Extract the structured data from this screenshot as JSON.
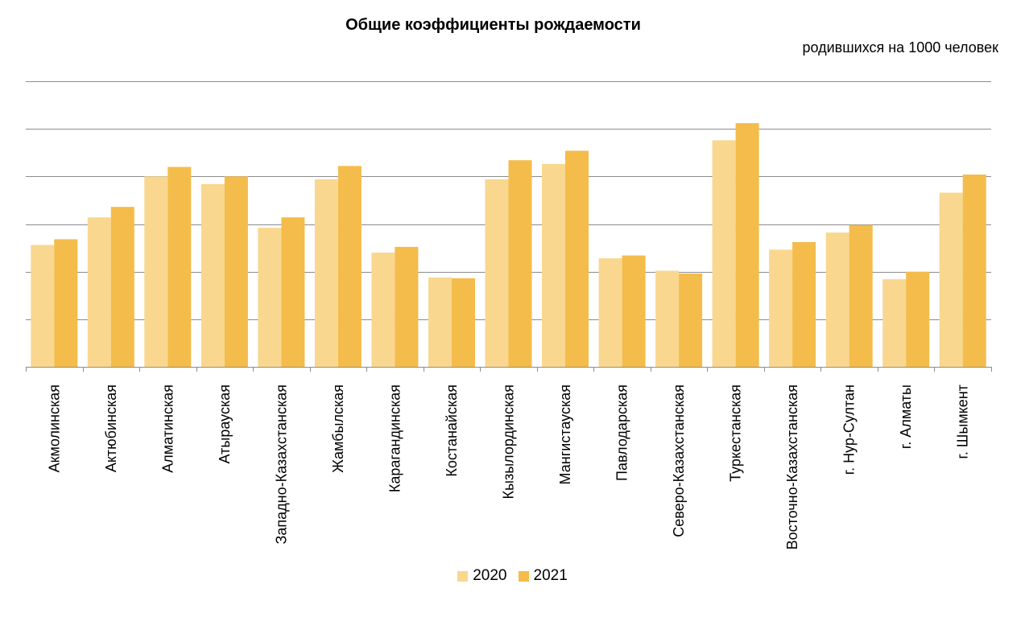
{
  "chart_data": {
    "type": "bar",
    "title": "Общие коэффициенты рождаемости",
    "subtitle": "родившихся на 1000 человек",
    "xlabel": "",
    "ylabel": "",
    "ylim": [
      0,
      30
    ],
    "gridlines": [
      0,
      5,
      10,
      15,
      20,
      25,
      30
    ],
    "grid": true,
    "legend_position": "bottom",
    "categories": [
      "Акмолинская",
      "Актюбинская",
      "Алматинская",
      "Атырауская",
      "Западно-Казахстанская",
      "Жамбылская",
      "Карагандинская",
      "Костанайская",
      "Кызылординская",
      "Мангистауская",
      "Павлодарская",
      "Северо-Казахстанская",
      "Туркестанская",
      "Восточно-Казахстанская",
      "г. Нур-Султан",
      "г. Алматы",
      "г. Шымкент"
    ],
    "series": [
      {
        "name": "2020",
        "color": "#F9D78F",
        "values": [
          12.8,
          15.7,
          20.0,
          19.2,
          14.6,
          19.7,
          12.0,
          9.4,
          19.7,
          21.3,
          11.4,
          10.1,
          23.8,
          12.3,
          14.1,
          9.2,
          18.3
        ]
      },
      {
        "name": "2021",
        "color": "#F4BC4A",
        "values": [
          13.4,
          16.8,
          21.0,
          20.0,
          15.7,
          21.1,
          12.6,
          9.3,
          21.7,
          22.7,
          11.7,
          9.8,
          25.6,
          13.1,
          14.9,
          10.0,
          20.2
        ]
      }
    ]
  }
}
